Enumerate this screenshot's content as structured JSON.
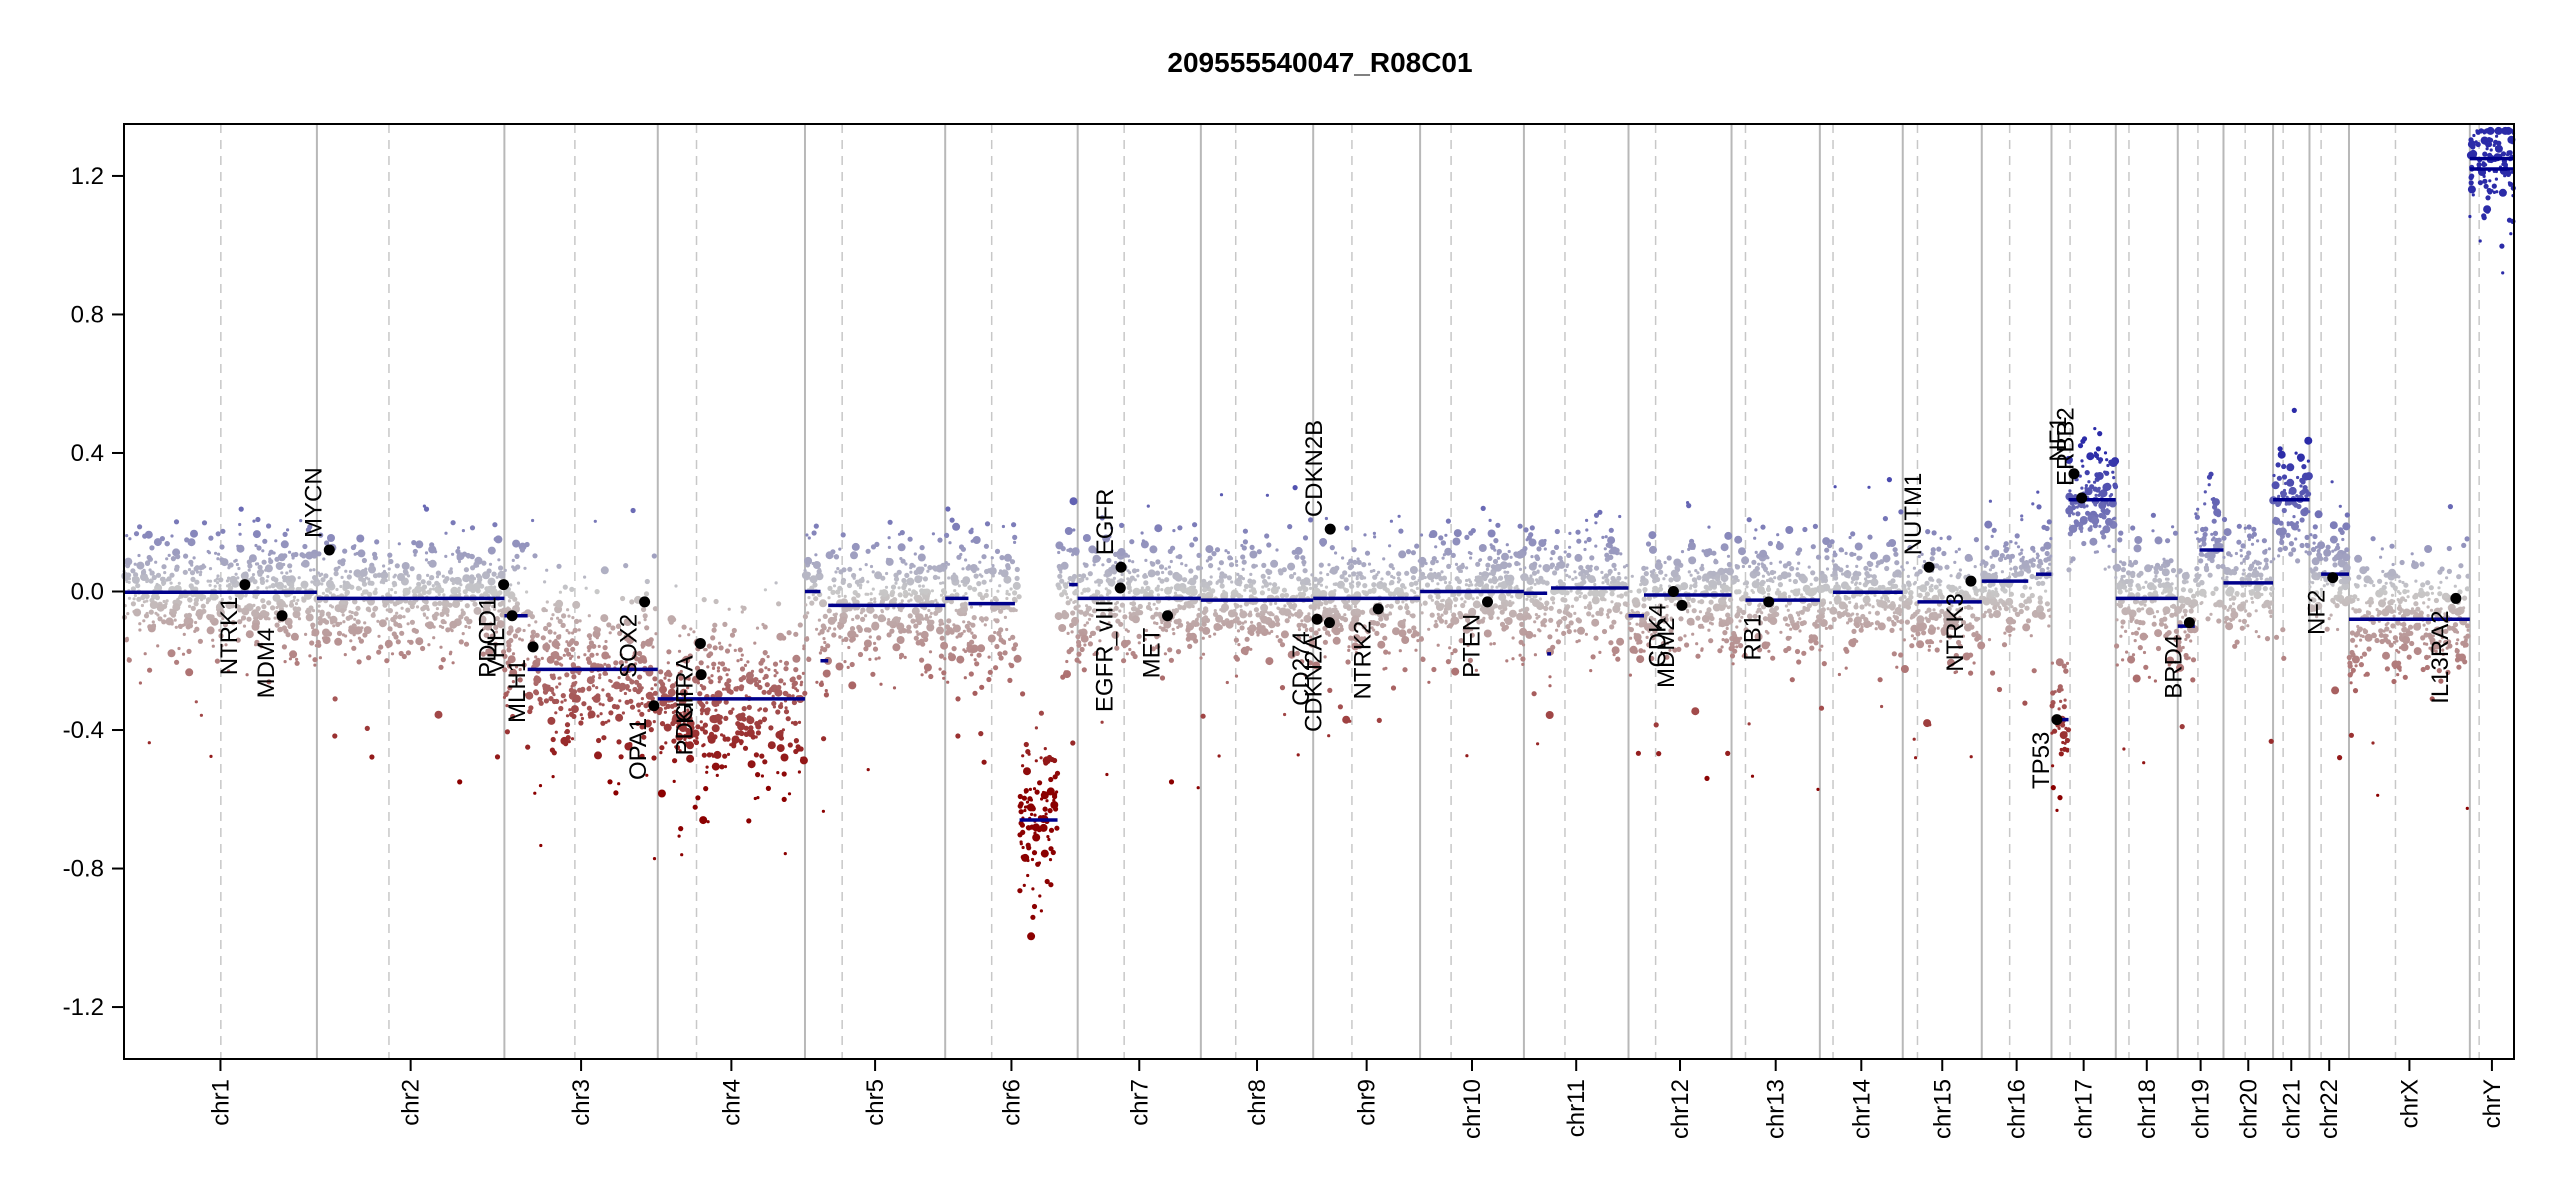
{
  "chart_data": {
    "type": "scatter",
    "title": "209555540047_R08C01",
    "xlabel": "",
    "ylabel": "",
    "ylim": [
      -1.35,
      1.35
    ],
    "y_ticks": [
      -1.2,
      -0.8,
      -0.4,
      0.0,
      0.4,
      0.8,
      1.2
    ],
    "y_tick_labels": [
      "-1.2",
      "-0.8",
      "-0.4",
      "0.0",
      "0.4",
      "0.8",
      "1.2"
    ],
    "grid": "vertical chromosome boundaries (solid) and centromeres (dashed)",
    "colors": {
      "gain": "#2b2ba8",
      "loss": "#8b0000",
      "neutral": "#c8c8c8",
      "segment": "#00008b",
      "gene_point": "#000000"
    },
    "chromosomes": [
      {
        "name": "chr1",
        "len": 249,
        "cen": 125,
        "base": -0.002,
        "segments": [
          {
            "from": 0,
            "to": 249,
            "y": -0.002
          }
        ]
      },
      {
        "name": "chr2",
        "len": 242,
        "cen": 93,
        "base": -0.02,
        "segments": [
          {
            "from": 0,
            "to": 242,
            "y": -0.02
          }
        ]
      },
      {
        "name": "chr3",
        "len": 198,
        "cen": 91,
        "base": -0.2,
        "segments": [
          {
            "from": 0,
            "to": 30,
            "y": -0.07
          },
          {
            "from": 30,
            "to": 198,
            "y": -0.225
          }
        ]
      },
      {
        "name": "chr4",
        "len": 190,
        "cen": 50,
        "base": -0.31,
        "segments": [
          {
            "from": 0,
            "to": 190,
            "y": -0.31
          }
        ]
      },
      {
        "name": "chr5",
        "len": 181,
        "cen": 48,
        "base": -0.04,
        "segments": [
          {
            "from": 0,
            "to": 20,
            "y": 0.0
          },
          {
            "from": 20,
            "to": 30,
            "y": -0.2
          },
          {
            "from": 30,
            "to": 181,
            "y": -0.04
          }
        ]
      },
      {
        "name": "chr6",
        "len": 171,
        "cen": 60,
        "base": -0.02,
        "segments": [
          {
            "from": 0,
            "to": 30,
            "y": -0.02
          },
          {
            "from": 30,
            "to": 90,
            "y": -0.035
          },
          {
            "from": 96,
            "to": 145,
            "y": -0.66
          },
          {
            "from": 160,
            "to": 171,
            "y": 0.02
          }
        ]
      },
      {
        "name": "chr7",
        "len": 159,
        "cen": 60,
        "base": -0.02,
        "segments": [
          {
            "from": 0,
            "to": 159,
            "y": -0.02
          }
        ]
      },
      {
        "name": "chr8",
        "len": 145,
        "cen": 45,
        "base": -0.025,
        "segments": [
          {
            "from": 0,
            "to": 145,
            "y": -0.025
          }
        ]
      },
      {
        "name": "chr9",
        "len": 138,
        "cen": 50,
        "base": -0.02,
        "segments": [
          {
            "from": 0,
            "to": 138,
            "y": -0.02
          }
        ]
      },
      {
        "name": "chr10",
        "len": 134,
        "cen": 40,
        "base": 0.0,
        "segments": [
          {
            "from": 0,
            "to": 134,
            "y": 0.0
          }
        ]
      },
      {
        "name": "chr11",
        "len": 135,
        "cen": 53,
        "base": 0.005,
        "segments": [
          {
            "from": 0,
            "to": 30,
            "y": -0.005
          },
          {
            "from": 30,
            "to": 35,
            "y": -0.18
          },
          {
            "from": 35,
            "to": 135,
            "y": 0.01
          }
        ]
      },
      {
        "name": "chr12",
        "len": 133,
        "cen": 35,
        "base": -0.01,
        "segments": [
          {
            "from": 0,
            "to": 20,
            "y": -0.07
          },
          {
            "from": 20,
            "to": 133,
            "y": -0.01
          }
        ]
      },
      {
        "name": "chr13",
        "len": 114,
        "cen": 18,
        "base": -0.025,
        "segments": [
          {
            "from": 18,
            "to": 114,
            "y": -0.025
          }
        ]
      },
      {
        "name": "chr14",
        "len": 107,
        "cen": 17,
        "base": -0.002,
        "segments": [
          {
            "from": 17,
            "to": 107,
            "y": -0.002
          }
        ]
      },
      {
        "name": "chr15",
        "len": 102,
        "cen": 19,
        "base": -0.03,
        "segments": [
          {
            "from": 19,
            "to": 102,
            "y": -0.03
          }
        ]
      },
      {
        "name": "chr16",
        "len": 90,
        "cen": 36,
        "base": 0.03,
        "segments": [
          {
            "from": 0,
            "to": 60,
            "y": 0.03
          },
          {
            "from": 70,
            "to": 90,
            "y": 0.05
          }
        ]
      },
      {
        "name": "chr17",
        "len": 83,
        "cen": 24,
        "base": 0.27,
        "segments": [
          {
            "from": 0,
            "to": 22,
            "y": -0.37
          },
          {
            "from": 22,
            "to": 83,
            "y": 0.265
          }
        ]
      },
      {
        "name": "chr18",
        "len": 80,
        "cen": 17,
        "base": -0.02,
        "segments": [
          {
            "from": 0,
            "to": 80,
            "y": -0.02
          }
        ]
      },
      {
        "name": "chr19",
        "len": 59,
        "cen": 26,
        "base": 0.12,
        "segments": [
          {
            "from": 0,
            "to": 22,
            "y": -0.1
          },
          {
            "from": 28,
            "to": 59,
            "y": 0.12
          }
        ]
      },
      {
        "name": "chr20",
        "len": 64,
        "cen": 28,
        "base": 0.025,
        "segments": [
          {
            "from": 0,
            "to": 64,
            "y": 0.025
          }
        ]
      },
      {
        "name": "chr21",
        "len": 47,
        "cen": 13,
        "base": 0.265,
        "segments": [
          {
            "from": 0,
            "to": 47,
            "y": 0.265
          }
        ]
      },
      {
        "name": "chr22",
        "len": 51,
        "cen": 15,
        "base": 0.05,
        "segments": [
          {
            "from": 15,
            "to": 51,
            "y": 0.05
          }
        ]
      },
      {
        "name": "chrX",
        "len": 156,
        "cen": 60,
        "base": -0.08,
        "segments": [
          {
            "from": 0,
            "to": 156,
            "y": -0.08
          }
        ]
      },
      {
        "name": "chrY",
        "len": 57,
        "cen": 12,
        "base": 1.22,
        "segments": [
          {
            "from": 0,
            "to": 57,
            "y": 1.22
          },
          {
            "from": 0,
            "to": 57,
            "y": 1.25
          }
        ]
      }
    ],
    "genes": [
      {
        "label": "NTRK1",
        "chr": "chr1",
        "pos": 156,
        "y": 0.02
      },
      {
        "label": "MDM4",
        "chr": "chr1",
        "pos": 204,
        "y": -0.07
      },
      {
        "label": "MYCN",
        "chr": "chr2",
        "pos": 16,
        "y": 0.12
      },
      {
        "label": "PDCD1",
        "chr": "chr2",
        "pos": 241,
        "y": 0.02
      },
      {
        "label": "VHL",
        "chr": "chr3",
        "pos": 10,
        "y": -0.07
      },
      {
        "label": "MLH1",
        "chr": "chr3",
        "pos": 37,
        "y": -0.16
      },
      {
        "label": "SOX2",
        "chr": "chr3",
        "pos": 181,
        "y": -0.03
      },
      {
        "label": "OPA1",
        "chr": "chr3",
        "pos": 193,
        "y": -0.33
      },
      {
        "label": "PDGFRA",
        "chr": "chr4",
        "pos": 55,
        "y": -0.15
      },
      {
        "label": "KIT",
        "chr": "chr4",
        "pos": 56,
        "y": -0.24
      },
      {
        "label": "EGFR_vIII",
        "chr": "chr7",
        "pos": 55,
        "y": 0.01
      },
      {
        "label": "EGFR",
        "chr": "chr7",
        "pos": 56,
        "y": 0.07
      },
      {
        "label": "MET",
        "chr": "chr7",
        "pos": 116,
        "y": -0.07
      },
      {
        "label": "CD274",
        "chr": "chr9",
        "pos": 5,
        "y": -0.08
      },
      {
        "label": "CDKN2A",
        "chr": "chr9",
        "pos": 21,
        "y": -0.09
      },
      {
        "label": "CDKN2B",
        "chr": "chr9",
        "pos": 22,
        "y": 0.18
      },
      {
        "label": "NTRK2",
        "chr": "chr9",
        "pos": 84,
        "y": -0.05
      },
      {
        "label": "PTEN",
        "chr": "chr10",
        "pos": 87,
        "y": -0.03
      },
      {
        "label": "CDK4",
        "chr": "chr12",
        "pos": 58,
        "y": 0.0
      },
      {
        "label": "MDM2",
        "chr": "chr12",
        "pos": 69,
        "y": -0.04
      },
      {
        "label": "RB1",
        "chr": "chr13",
        "pos": 48,
        "y": -0.03
      },
      {
        "label": "NUTM1",
        "chr": "chr15",
        "pos": 34,
        "y": 0.07
      },
      {
        "label": "NTRK3",
        "chr": "chr15",
        "pos": 88,
        "y": 0.03
      },
      {
        "label": "TP53",
        "chr": "chr17",
        "pos": 7,
        "y": -0.37
      },
      {
        "label": "NF1",
        "chr": "chr17",
        "pos": 29,
        "y": 0.34
      },
      {
        "label": "ERBB2",
        "chr": "chr17",
        "pos": 39,
        "y": 0.27
      },
      {
        "label": "BRD4",
        "chr": "chr19",
        "pos": 15,
        "y": -0.09
      },
      {
        "label": "NF2",
        "chr": "chr22",
        "pos": 30,
        "y": 0.04
      },
      {
        "label": "IL13RA2",
        "chr": "chrX",
        "pos": 138,
        "y": -0.02
      }
    ]
  }
}
